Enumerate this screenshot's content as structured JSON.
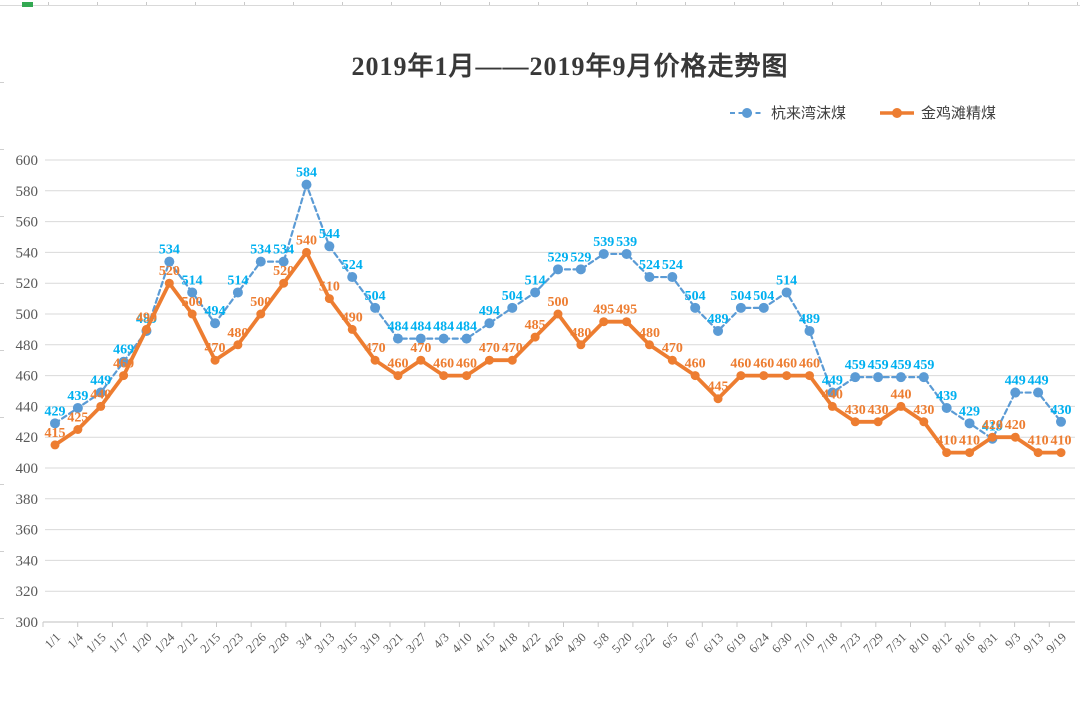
{
  "chart_data": {
    "type": "line",
    "title": "2019年1月——2019年9月价格走势图",
    "categories": [
      "1/1",
      "1/4",
      "1/15",
      "1/17",
      "1/20",
      "1/24",
      "2/12",
      "2/15",
      "2/23",
      "2/26",
      "2/28",
      "3/4",
      "3/13",
      "3/15",
      "3/19",
      "3/21",
      "3/27",
      "4/3",
      "4/10",
      "4/15",
      "4/18",
      "4/22",
      "4/26",
      "4/30",
      "5/8",
      "5/20",
      "5/22",
      "6/5",
      "6/7",
      "6/13",
      "6/19",
      "6/24",
      "6/30",
      "7/10",
      "7/18",
      "7/23",
      "7/29",
      "7/31",
      "8/10",
      "8/12",
      "8/16",
      "8/31",
      "9/3",
      "9/13",
      "9/19"
    ],
    "series": [
      {
        "name": "杭来湾沫煤",
        "style": "dashed",
        "color": "#5B9BD5",
        "label_color": "#00B0F0",
        "values": [
          429,
          439,
          449,
          469,
          489,
          534,
          514,
          494,
          514,
          534,
          534,
          584,
          544,
          524,
          504,
          484,
          484,
          484,
          484,
          494,
          504,
          514,
          529,
          529,
          539,
          539,
          524,
          524,
          504,
          489,
          504,
          504,
          514,
          489,
          449,
          459,
          459,
          459,
          459,
          439,
          429,
          419,
          449,
          449,
          430
        ]
      },
      {
        "name": "金鸡滩精煤",
        "style": "solid",
        "color": "#ED7D31",
        "label_color": "#ED7D31",
        "values": [
          415,
          425,
          440,
          460,
          490,
          520,
          500,
          470,
          480,
          500,
          520,
          540,
          510,
          490,
          470,
          460,
          470,
          460,
          460,
          470,
          470,
          485,
          500,
          480,
          495,
          495,
          480,
          470,
          460,
          445,
          460,
          460,
          460,
          460,
          440,
          430,
          430,
          440,
          430,
          410,
          410,
          420,
          420,
          410,
          410
        ]
      }
    ],
    "ylim": [
      300,
      600
    ],
    "ytick_step": 20,
    "ytick_labels": [
      "300",
      "320",
      "340",
      "360",
      "380",
      "400",
      "420",
      "440",
      "460",
      "480",
      "500",
      "520",
      "540",
      "560",
      "580",
      "600"
    ],
    "xlabel": "",
    "ylabel": "",
    "grid": true,
    "legend_position": "top-right",
    "gridline_color": "#D9D9D9",
    "axis_line_color": "#BFBFBF",
    "axis_text_color": "#595959"
  }
}
